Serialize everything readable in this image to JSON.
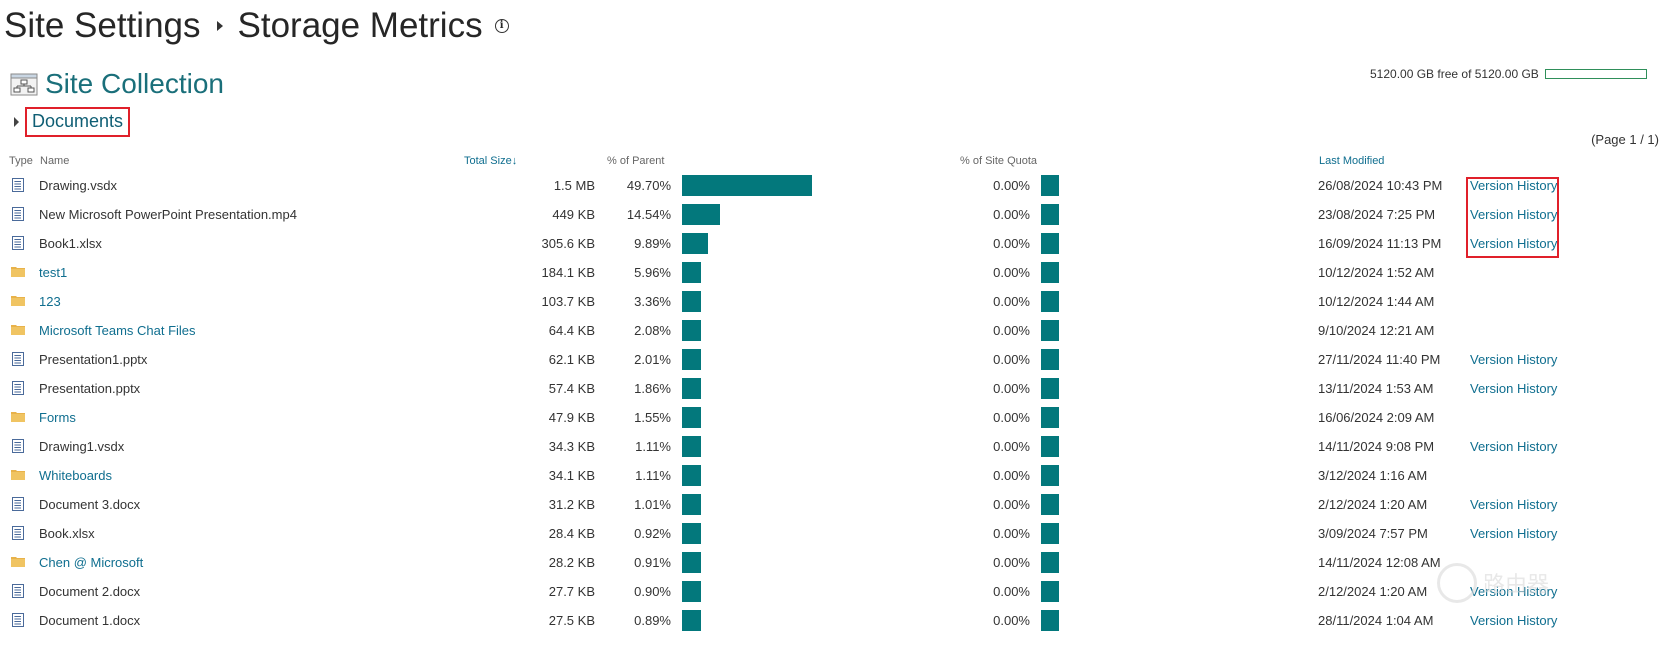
{
  "header": {
    "site_settings": "Site Settings",
    "storage_metrics": "Storage Metrics"
  },
  "site_collection": {
    "title": "Site Collection"
  },
  "quota": {
    "text": "5120.00 GB free of 5120.00 GB",
    "used_fraction": 0.0
  },
  "breadcrumb": {
    "label": "Documents"
  },
  "pagination": {
    "label": "(Page 1 / 1)"
  },
  "columns": {
    "type": "Type",
    "name": "Name",
    "total_size": "Total Size",
    "sort_arrow": "↓",
    "pct_parent": "% of Parent",
    "pct_quota": "% of Site Quota",
    "last_modified": "Last Modified"
  },
  "rows": [
    {
      "type": "file",
      "name": "Drawing.vsdx",
      "size": "1.5 MB",
      "pct_parent": "49.70%",
      "parent_value": 49.7,
      "pct_quota": "0.00%",
      "modified": "26/08/2024 10:43 PM",
      "version": "Version History"
    },
    {
      "type": "file",
      "name": "New Microsoft PowerPoint Presentation.mp4",
      "size": "449 KB",
      "pct_parent": "14.54%",
      "parent_value": 14.54,
      "pct_quota": "0.00%",
      "modified": "23/08/2024 7:25 PM",
      "version": "Version History"
    },
    {
      "type": "file",
      "name": "Book1.xlsx",
      "size": "305.6 KB",
      "pct_parent": "9.89%",
      "parent_value": 9.89,
      "pct_quota": "0.00%",
      "modified": "16/09/2024 11:13 PM",
      "version": "Version History"
    },
    {
      "type": "folder",
      "name": "test1",
      "size": "184.1 KB",
      "pct_parent": "5.96%",
      "parent_value": 5.96,
      "pct_quota": "0.00%",
      "modified": "10/12/2024 1:52 AM",
      "version": ""
    },
    {
      "type": "folder",
      "name": "123",
      "size": "103.7 KB",
      "pct_parent": "3.36%",
      "parent_value": 3.36,
      "pct_quota": "0.00%",
      "modified": "10/12/2024 1:44 AM",
      "version": ""
    },
    {
      "type": "folder",
      "name": "Microsoft Teams Chat Files",
      "size": "64.4 KB",
      "pct_parent": "2.08%",
      "parent_value": 2.08,
      "pct_quota": "0.00%",
      "modified": "9/10/2024 12:21 AM",
      "version": ""
    },
    {
      "type": "file",
      "name": "Presentation1.pptx",
      "size": "62.1 KB",
      "pct_parent": "2.01%",
      "parent_value": 2.01,
      "pct_quota": "0.00%",
      "modified": "27/11/2024 11:40 PM",
      "version": "Version History"
    },
    {
      "type": "file",
      "name": "Presentation.pptx",
      "size": "57.4 KB",
      "pct_parent": "1.86%",
      "parent_value": 1.86,
      "pct_quota": "0.00%",
      "modified": "13/11/2024 1:53 AM",
      "version": "Version History"
    },
    {
      "type": "folder",
      "name": "Forms",
      "size": "47.9 KB",
      "pct_parent": "1.55%",
      "parent_value": 1.55,
      "pct_quota": "0.00%",
      "modified": "16/06/2024 2:09 AM",
      "version": ""
    },
    {
      "type": "file",
      "name": "Drawing1.vsdx",
      "size": "34.3 KB",
      "pct_parent": "1.11%",
      "parent_value": 1.11,
      "pct_quota": "0.00%",
      "modified": "14/11/2024 9:08 PM",
      "version": "Version History"
    },
    {
      "type": "folder",
      "name": "Whiteboards",
      "size": "34.1 KB",
      "pct_parent": "1.11%",
      "parent_value": 1.11,
      "pct_quota": "0.00%",
      "modified": "3/12/2024 1:16 AM",
      "version": ""
    },
    {
      "type": "file",
      "name": "Document 3.docx",
      "size": "31.2 KB",
      "pct_parent": "1.01%",
      "parent_value": 1.01,
      "pct_quota": "0.00%",
      "modified": "2/12/2024 1:20 AM",
      "version": "Version History"
    },
    {
      "type": "file",
      "name": "Book.xlsx",
      "size": "28.4 KB",
      "pct_parent": "0.92%",
      "parent_value": 0.92,
      "pct_quota": "0.00%",
      "modified": "3/09/2024 7:57 PM",
      "version": "Version History"
    },
    {
      "type": "folder",
      "name": "Chen @ Microsoft",
      "size": "28.2 KB",
      "pct_parent": "0.91%",
      "parent_value": 0.91,
      "pct_quota": "0.00%",
      "modified": "14/11/2024 12:08 AM",
      "version": ""
    },
    {
      "type": "file",
      "name": "Document 2.docx",
      "size": "27.7 KB",
      "pct_parent": "0.90%",
      "parent_value": 0.9,
      "pct_quota": "0.00%",
      "modified": "2/12/2024 1:20 AM",
      "version": "Version History"
    },
    {
      "type": "file",
      "name": "Document 1.docx",
      "size": "27.5 KB",
      "pct_parent": "0.89%",
      "parent_value": 0.89,
      "pct_quota": "0.00%",
      "modified": "28/11/2024 1:04 AM",
      "version": "Version History"
    }
  ],
  "watermark": {
    "text": "路由器"
  },
  "colors": {
    "bar": "#03787c",
    "link": "#0f6e8f",
    "highlight": "#e0202a",
    "folder": "#e8b24a"
  }
}
